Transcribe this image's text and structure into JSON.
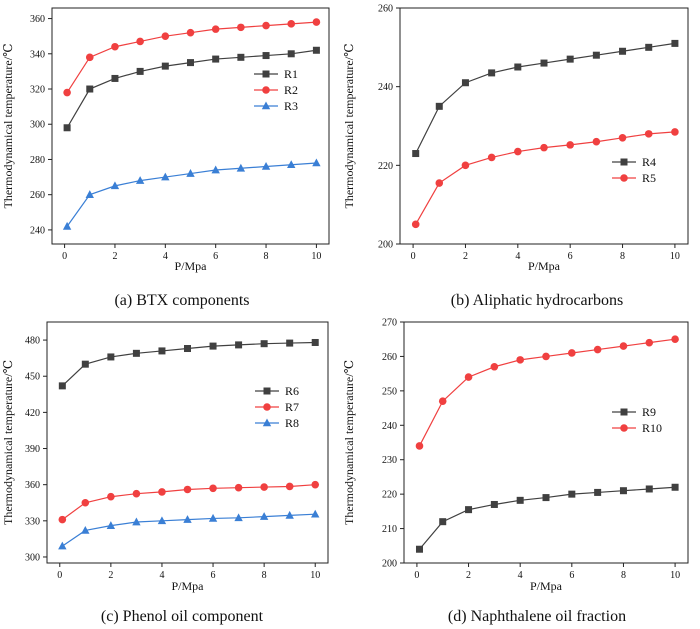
{
  "chart_data": [
    {
      "type": "line",
      "caption": "(a) BTX components",
      "xlabel": "P/Mpa",
      "ylabel": "Thermodynamical temperature/℃",
      "xlim": [
        -0.5,
        10.5
      ],
      "ylim": [
        232,
        366
      ],
      "xticks": [
        0,
        2,
        4,
        6,
        8,
        10
      ],
      "yticks": [
        240,
        260,
        280,
        300,
        320,
        340,
        360
      ],
      "legend_position": "center-right",
      "x": [
        0.1,
        1,
        2,
        3,
        4,
        5,
        6,
        7,
        8,
        9,
        10
      ],
      "series": [
        {
          "name": "R1",
          "color": "#404040",
          "marker": "square",
          "values": [
            298,
            320,
            326,
            330,
            333,
            335,
            337,
            338,
            339,
            340,
            342
          ]
        },
        {
          "name": "R2",
          "color": "#f04040",
          "marker": "circle",
          "values": [
            318,
            338,
            344,
            347,
            350,
            352,
            354,
            355,
            356,
            357,
            358
          ]
        },
        {
          "name": "R3",
          "color": "#3a7fd5",
          "marker": "triangle",
          "values": [
            242,
            260,
            265,
            268,
            270,
            272,
            274,
            275,
            276,
            277,
            278
          ]
        }
      ]
    },
    {
      "type": "line",
      "caption": "(b) Aliphatic hydrocarbons",
      "xlabel": "P/Mpa",
      "ylabel": "Thermodynamical temperature/℃",
      "xlim": [
        -0.5,
        10.5
      ],
      "ylim": [
        200,
        260
      ],
      "xticks": [
        0,
        2,
        4,
        6,
        8,
        10
      ],
      "yticks": [
        200,
        220,
        240,
        260
      ],
      "legend_position": "center-right",
      "x": [
        0.1,
        1,
        2,
        3,
        4,
        5,
        6,
        7,
        8,
        9,
        10
      ],
      "series": [
        {
          "name": "R4",
          "color": "#404040",
          "marker": "square",
          "values": [
            223,
            235,
            241,
            243.5,
            245,
            246,
            247,
            248,
            249,
            250,
            251
          ]
        },
        {
          "name": "R5",
          "color": "#f04040",
          "marker": "circle",
          "values": [
            205,
            215.5,
            220,
            222,
            223.5,
            224.5,
            225.2,
            226,
            227,
            228,
            228.5
          ]
        }
      ]
    },
    {
      "type": "line",
      "caption": "(c) Phenol oil component",
      "xlabel": "P/Mpa",
      "ylabel": "Thermodynamical temperature/℃",
      "xlim": [
        -0.5,
        10.5
      ],
      "ylim": [
        295,
        495
      ],
      "xticks": [
        0,
        2,
        4,
        6,
        8,
        10
      ],
      "yticks": [
        300,
        330,
        360,
        390,
        420,
        450,
        480
      ],
      "legend_position": "center-right",
      "x": [
        0.1,
        1,
        2,
        3,
        4,
        5,
        6,
        7,
        8,
        9,
        10
      ],
      "series": [
        {
          "name": "R6",
          "color": "#404040",
          "marker": "square",
          "values": [
            442,
            460,
            466,
            469,
            471,
            473,
            475,
            476,
            477,
            477.5,
            478
          ]
        },
        {
          "name": "R7",
          "color": "#f04040",
          "marker": "circle",
          "values": [
            331,
            345,
            350,
            352.5,
            354,
            356,
            357,
            357.5,
            358,
            358.5,
            360
          ]
        },
        {
          "name": "R8",
          "color": "#3a7fd5",
          "marker": "triangle",
          "values": [
            309,
            322,
            326,
            329,
            330,
            331,
            332,
            332.5,
            333.5,
            334.5,
            335.5
          ]
        }
      ]
    },
    {
      "type": "line",
      "caption": "(d) Naphthalene oil fraction",
      "xlabel": "P/Mpa",
      "ylabel": "Thermodynamical temperature/℃",
      "xlim": [
        -0.5,
        10.5
      ],
      "ylim": [
        200,
        270
      ],
      "xticks": [
        0,
        2,
        4,
        6,
        8,
        10
      ],
      "yticks": [
        200,
        210,
        220,
        230,
        240,
        250,
        260,
        270
      ],
      "legend_position": "center-right",
      "x": [
        0.1,
        1,
        2,
        3,
        4,
        5,
        6,
        7,
        8,
        9,
        10
      ],
      "series": [
        {
          "name": "R9",
          "color": "#404040",
          "marker": "square",
          "values": [
            204,
            212,
            215.5,
            217,
            218.2,
            219,
            220,
            220.5,
            221,
            221.5,
            222
          ]
        },
        {
          "name": "R10",
          "color": "#f04040",
          "marker": "circle",
          "values": [
            234,
            247,
            254,
            257,
            259,
            260,
            261,
            262,
            263,
            264,
            265
          ]
        }
      ]
    }
  ]
}
